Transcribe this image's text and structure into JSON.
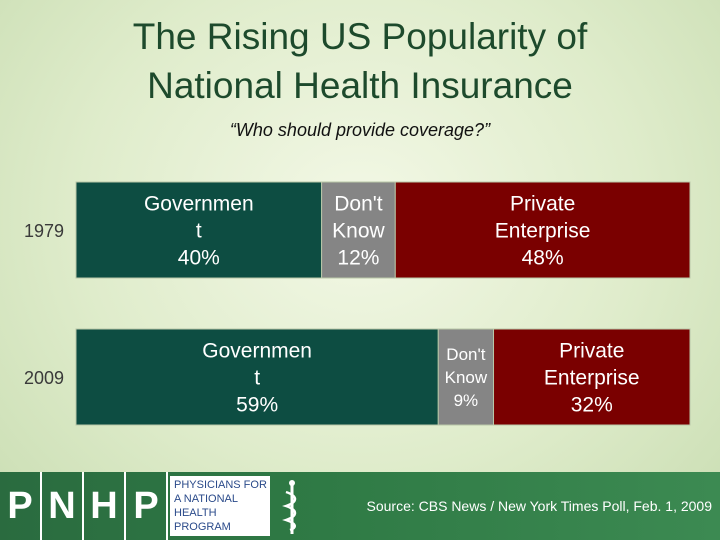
{
  "title_line1": "The Rising US Popularity of",
  "title_line2": "National Health Insurance",
  "subtitle": "“Who should provide coverage?”",
  "chart_data": {
    "type": "bar",
    "orientation": "horizontal-stacked-100",
    "categories": [
      "1979",
      "2009"
    ],
    "series": [
      {
        "name": "Governmen t",
        "values": [
          40,
          59
        ],
        "labels": [
          "Governmen",
          "t"
        ],
        "color": "#0d4d42"
      },
      {
        "name": "Don't Know",
        "values": [
          12,
          9
        ],
        "labels": [
          "Don't",
          "Know"
        ],
        "color": "#858585"
      },
      {
        "name": "Private Enterprise",
        "values": [
          48,
          32
        ],
        "labels": [
          "Private",
          "Enterprise"
        ],
        "color": "#7a0000"
      }
    ],
    "value_suffix": "%"
  },
  "footer": {
    "logo_letters": [
      "P",
      "N",
      "H",
      "P"
    ],
    "logo_text": [
      "PHYSICIANS FOR",
      "A NATIONAL",
      "HEALTH",
      "PROGRAM"
    ],
    "source": "Source: CBS News / New York Times Poll, Feb. 1, 2009"
  }
}
